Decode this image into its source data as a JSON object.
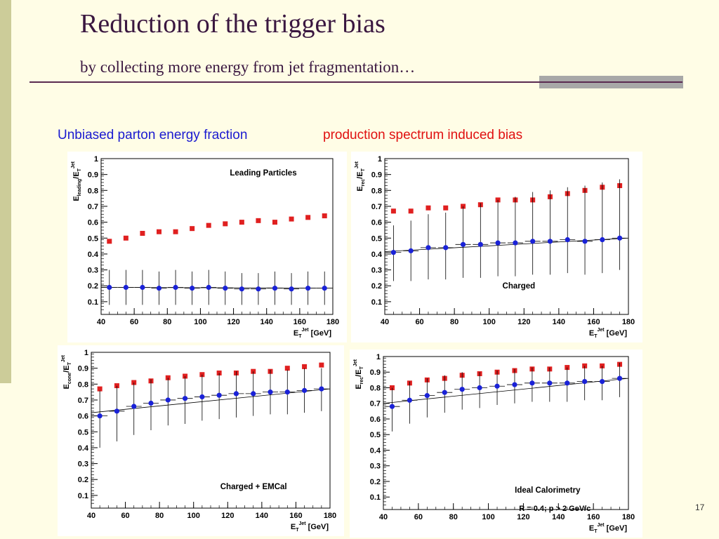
{
  "slide": {
    "title": "Reduction of the trigger bias",
    "subtitle": "by collecting more energy from jet fragmentation…",
    "caption_blue": "Unbiased parton energy fraction",
    "caption_red": "production spectrum induced bias",
    "page_number": "17",
    "colors": {
      "title": "#3a1740",
      "blue_caption": "#1a1ad0",
      "red_caption": "#e01010",
      "background": "#fffde6",
      "side_bar": "#cccc99"
    }
  },
  "chart_data": [
    {
      "type": "scatter",
      "label": "Leading  Particles",
      "xlabel": {
        "base": "E",
        "sub": "T",
        "sup": "Jet",
        "tail": "[GeV]"
      },
      "ylabel": {
        "base": "E",
        "sub": "leading",
        "mid": "/E",
        "sub2": "T",
        "sup2": "Jet"
      },
      "xlim": [
        40,
        180
      ],
      "ylim": [
        0.02,
        1.0
      ],
      "x_ticks": [
        "40",
        "60",
        "80",
        "100",
        "120",
        "140",
        "160",
        "180"
      ],
      "y_ticks": [
        "0.1",
        "0.2",
        "0.3",
        "0.4",
        "0.5",
        "0.6",
        "0.7",
        "0.8",
        "0.9",
        "1"
      ],
      "series": [
        {
          "marker": "square",
          "color": "#e02020",
          "x": [
            45,
            55,
            65,
            75,
            85,
            95,
            105,
            115,
            125,
            135,
            145,
            155,
            165,
            175
          ],
          "y": [
            0.48,
            0.5,
            0.53,
            0.54,
            0.54,
            0.56,
            0.58,
            0.59,
            0.6,
            0.61,
            0.6,
            0.62,
            0.63,
            0.64
          ]
        },
        {
          "marker": "circle",
          "color": "#1a22d8",
          "x": [
            45,
            55,
            65,
            75,
            85,
            95,
            105,
            115,
            125,
            135,
            145,
            155,
            165,
            175
          ],
          "y": [
            0.19,
            0.19,
            0.19,
            0.185,
            0.19,
            0.185,
            0.19,
            0.185,
            0.18,
            0.18,
            0.185,
            0.18,
            0.185,
            0.185
          ],
          "err_lo": [
            0.11,
            0.11,
            0.11,
            0.105,
            0.11,
            0.105,
            0.11,
            0.105,
            0.1,
            0.1,
            0.105,
            0.1,
            0.105,
            0.105
          ],
          "err_hi": [
            0.11,
            0.11,
            0.11,
            0.105,
            0.11,
            0.105,
            0.11,
            0.105,
            0.1,
            0.1,
            0.105,
            0.1,
            0.105,
            0.105
          ],
          "fit": [
            [
              40,
              0.19
            ],
            [
              180,
              0.185
            ]
          ]
        }
      ]
    },
    {
      "type": "scatter",
      "label": "Charged",
      "xlabel": {
        "base": "E",
        "sub": "T",
        "sup": "Jet",
        "tail": "[GeV]"
      },
      "ylabel": {
        "base": "E",
        "sub": "rec",
        "mid": "/E",
        "sub2": "T",
        "sup2": "Jet"
      },
      "xlim": [
        40,
        180
      ],
      "ylim": [
        0.02,
        1.0
      ],
      "x_ticks": [
        "40",
        "60",
        "80",
        "100",
        "120",
        "140",
        "160",
        "180"
      ],
      "y_ticks": [
        "0.1",
        "0.2",
        "0.3",
        "0.4",
        "0.5",
        "0.6",
        "0.7",
        "0.8",
        "0.9",
        "1"
      ],
      "series": [
        {
          "marker": "square",
          "color": "#e02020",
          "x": [
            45,
            55,
            65,
            75,
            85,
            95,
            105,
            115,
            125,
            135,
            145,
            155,
            165,
            175
          ],
          "y": [
            0.67,
            0.67,
            0.69,
            0.69,
            0.7,
            0.71,
            0.74,
            0.74,
            0.74,
            0.76,
            0.78,
            0.8,
            0.82,
            0.83
          ]
        },
        {
          "marker": "circle",
          "color": "#1a22d8",
          "x": [
            45,
            55,
            65,
            75,
            85,
            95,
            105,
            115,
            125,
            135,
            145,
            155,
            165,
            175
          ],
          "y": [
            0.41,
            0.42,
            0.44,
            0.44,
            0.46,
            0.46,
            0.47,
            0.47,
            0.48,
            0.48,
            0.49,
            0.48,
            0.49,
            0.5
          ],
          "err_lo": [
            0.18,
            0.19,
            0.2,
            0.2,
            0.21,
            0.21,
            0.21,
            0.21,
            0.21,
            0.21,
            0.21,
            0.21,
            0.21,
            0.2
          ],
          "err_hi": [
            0.17,
            0.19,
            0.21,
            0.22,
            0.24,
            0.26,
            0.27,
            0.29,
            0.31,
            0.32,
            0.33,
            0.35,
            0.36,
            0.37
          ],
          "fit": [
            [
              40,
              0.415
            ],
            [
              180,
              0.5
            ]
          ]
        }
      ]
    },
    {
      "type": "scatter",
      "label": "Charged   +   EMCal",
      "xlabel": {
        "base": "E",
        "sub": "T",
        "sup": "Jet",
        "tail": "[GeV]"
      },
      "ylabel": {
        "base": "E",
        "sub": "cone",
        "mid": "/E",
        "sub2": "T",
        "sup2": "Jet"
      },
      "xlim": [
        40,
        180
      ],
      "ylim": [
        0.02,
        1.0
      ],
      "x_ticks": [
        "40",
        "60",
        "80",
        "100",
        "120",
        "140",
        "160",
        "180"
      ],
      "y_ticks": [
        "0.1",
        "0.2",
        "0.3",
        "0.4",
        "0.5",
        "0.6",
        "0.7",
        "0.8",
        "0.9",
        "1"
      ],
      "series": [
        {
          "marker": "square",
          "color": "#e02020",
          "x": [
            45,
            55,
            65,
            75,
            85,
            95,
            105,
            115,
            125,
            135,
            145,
            155,
            165,
            175
          ],
          "y": [
            0.77,
            0.79,
            0.81,
            0.82,
            0.84,
            0.85,
            0.86,
            0.87,
            0.87,
            0.88,
            0.88,
            0.9,
            0.91,
            0.92
          ]
        },
        {
          "marker": "circle",
          "color": "#1a22d8",
          "x": [
            45,
            55,
            65,
            75,
            85,
            95,
            105,
            115,
            125,
            135,
            145,
            155,
            165,
            175
          ],
          "y": [
            0.6,
            0.63,
            0.66,
            0.68,
            0.7,
            0.71,
            0.72,
            0.73,
            0.74,
            0.74,
            0.75,
            0.75,
            0.76,
            0.77
          ],
          "err_lo": [
            0.2,
            0.19,
            0.18,
            0.17,
            0.16,
            0.16,
            0.15,
            0.15,
            0.15,
            0.14,
            0.14,
            0.14,
            0.14,
            0.14
          ],
          "err_hi": [
            0.16,
            0.16,
            0.15,
            0.15,
            0.14,
            0.14,
            0.14,
            0.14,
            0.14,
            0.14,
            0.14,
            0.14,
            0.14,
            0.13
          ],
          "fit": [
            [
              40,
              0.62
            ],
            [
              180,
              0.77
            ]
          ]
        }
      ]
    },
    {
      "type": "scatter",
      "label": "Ideal   Calorimetry",
      "annotation": "R  =  0.4; p  >  2  GeV/c",
      "xlabel": {
        "base": "E",
        "sub": "T",
        "sup": "Jet",
        "tail": "[GeV]"
      },
      "ylabel": {
        "base": "E",
        "sub": "rec",
        "mid": "/E",
        "sub2": "T",
        "sup2": "Jet"
      },
      "xlim": [
        40,
        180
      ],
      "ylim": [
        0.02,
        1.0
      ],
      "x_ticks": [
        "40",
        "60",
        "80",
        "100",
        "120",
        "140",
        "160",
        "180"
      ],
      "y_ticks": [
        "0.1",
        "0.2",
        "0.3",
        "0.4",
        "0.5",
        "0.6",
        "0.7",
        "0.8",
        "0.9",
        "1"
      ],
      "series": [
        {
          "marker": "square",
          "color": "#e02020",
          "x": [
            45,
            55,
            65,
            75,
            85,
            95,
            105,
            115,
            125,
            135,
            145,
            155,
            165,
            175
          ],
          "y": [
            0.8,
            0.83,
            0.85,
            0.86,
            0.88,
            0.89,
            0.9,
            0.91,
            0.92,
            0.92,
            0.93,
            0.94,
            0.94,
            0.95
          ]
        },
        {
          "marker": "circle",
          "color": "#1a22d8",
          "x": [
            45,
            55,
            65,
            75,
            85,
            95,
            105,
            115,
            125,
            135,
            145,
            155,
            165,
            175
          ],
          "y": [
            0.68,
            0.72,
            0.75,
            0.77,
            0.79,
            0.8,
            0.81,
            0.82,
            0.83,
            0.83,
            0.83,
            0.84,
            0.84,
            0.86
          ],
          "err_lo": [
            0.16,
            0.15,
            0.14,
            0.13,
            0.13,
            0.13,
            0.12,
            0.12,
            0.12,
            0.12,
            0.12,
            0.12,
            0.12,
            0.12
          ],
          "err_hi": [
            0.12,
            0.12,
            0.11,
            0.11,
            0.11,
            0.1,
            0.1,
            0.1,
            0.1,
            0.1,
            0.1,
            0.1,
            0.1,
            0.1
          ],
          "fit": [
            [
              40,
              0.7
            ],
            [
              180,
              0.86
            ]
          ]
        }
      ]
    }
  ]
}
